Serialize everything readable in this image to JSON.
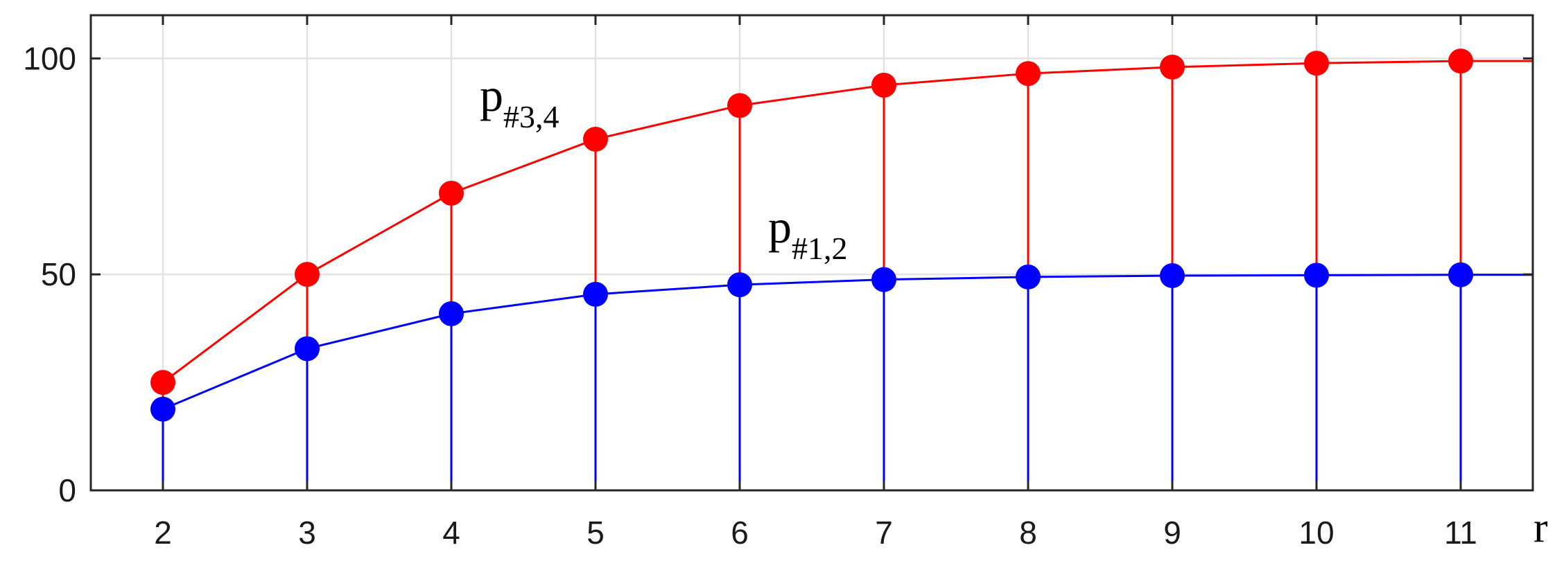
{
  "chart_data": {
    "type": "line",
    "title": "",
    "xlabel": "r",
    "ylabel": "",
    "x": [
      2,
      3,
      4,
      5,
      6,
      7,
      8,
      9,
      10,
      11
    ],
    "xlim": [
      1.5,
      11.5
    ],
    "ylim": [
      0,
      110
    ],
    "xticks": [
      2,
      3,
      4,
      5,
      6,
      7,
      8,
      9,
      10,
      11
    ],
    "yticks": [
      0,
      50,
      100
    ],
    "grid": true,
    "stems": true,
    "series": [
      {
        "name": "p#3,4",
        "label_main": "p",
        "label_sub": "#3,4",
        "color": "#ff0000",
        "values": [
          25,
          50,
          68.8,
          81.3,
          89.1,
          93.8,
          96.5,
          98.0,
          98.9,
          99.4
        ]
      },
      {
        "name": "p#1,2",
        "label_main": "p",
        "label_sub": "#1,2",
        "color": "#0000ff",
        "values": [
          18.8,
          32.8,
          40.9,
          45.4,
          47.6,
          48.8,
          49.4,
          49.7,
          49.8,
          49.9
        ]
      }
    ]
  }
}
